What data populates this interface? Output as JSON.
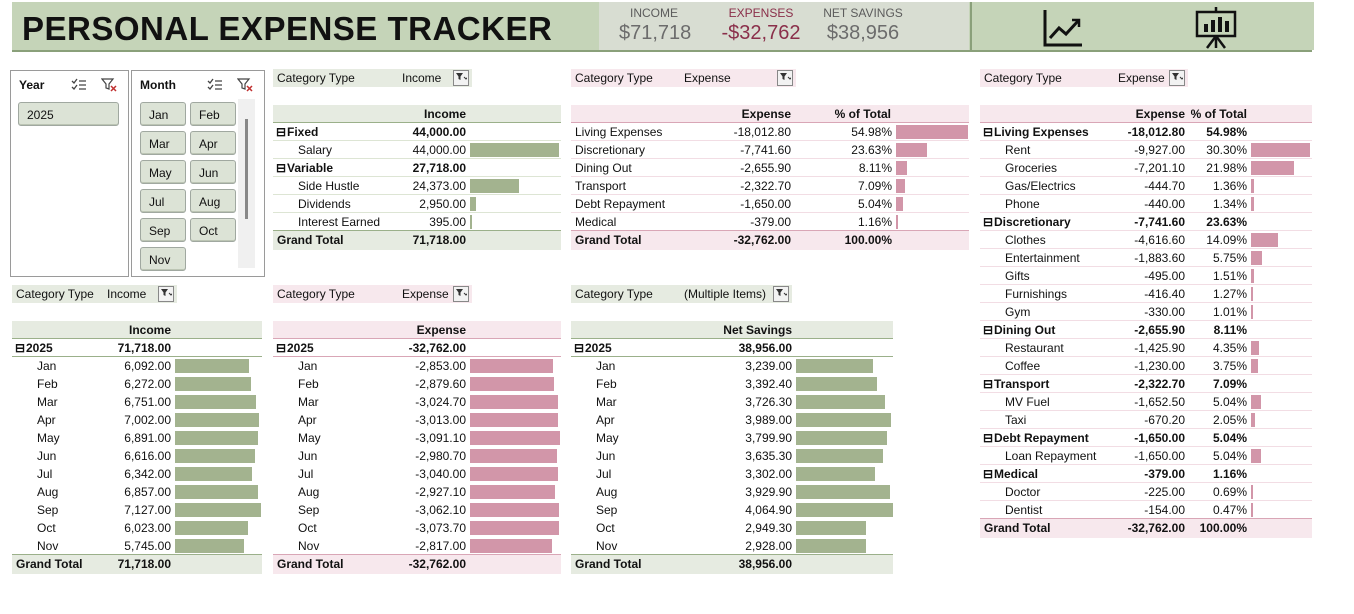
{
  "header": {
    "title": "PERSONAL EXPENSE TRACKER",
    "kpis": [
      {
        "label": "INCOME",
        "value": "$71,718"
      },
      {
        "label": "EXPENSES",
        "value": "-$32,762"
      },
      {
        "label": "NET SAVINGS",
        "value": "$38,956"
      }
    ],
    "icons": [
      "line-chart-icon",
      "presentation-board-icon"
    ]
  },
  "year_slicer": {
    "title": "Year",
    "items": [
      "2025"
    ]
  },
  "month_slicer": {
    "title": "Month",
    "items": [
      "Jan",
      "Feb",
      "Mar",
      "Apr",
      "May",
      "Jun",
      "Jul",
      "Aug",
      "Sep",
      "Oct",
      "Nov"
    ]
  },
  "pivot_income_type": {
    "filter_label": "Category Type",
    "filter_value": "Income",
    "col_header": "Income",
    "rows": [
      {
        "label": "Fixed",
        "value": "44,000.00",
        "group": true
      },
      {
        "label": "Salary",
        "value": "44,000.00",
        "group": false,
        "bar": 1.0
      },
      {
        "label": "Variable",
        "value": "27,718.00",
        "group": true
      },
      {
        "label": "Side Hustle",
        "value": "24,373.00",
        "group": false,
        "bar": 0.554
      },
      {
        "label": "Dividends",
        "value": "2,950.00",
        "group": false,
        "bar": 0.067
      },
      {
        "label": "Interest Earned",
        "value": "395.00",
        "group": false,
        "bar": 0.009
      }
    ],
    "total_label": "Grand Total",
    "total_value": "71,718.00"
  },
  "pivot_expense_cat": {
    "filter_label": "Category Type",
    "filter_value": "Expense",
    "col_header": "Expense",
    "col_header2": "% of Total",
    "rows": [
      {
        "label": "Living Expenses",
        "value": "-18,012.80",
        "pct": "54.98%",
        "bar": 1.0
      },
      {
        "label": "Discretionary",
        "value": "-7,741.60",
        "pct": "23.63%",
        "bar": 0.43
      },
      {
        "label": "Dining Out",
        "value": "-2,655.90",
        "pct": "8.11%",
        "bar": 0.147
      },
      {
        "label": "Transport",
        "value": "-2,322.70",
        "pct": "7.09%",
        "bar": 0.129
      },
      {
        "label": "Debt Repayment",
        "value": "-1,650.00",
        "pct": "5.04%",
        "bar": 0.092
      },
      {
        "label": "Medical",
        "value": "-379.00",
        "pct": "1.16%",
        "bar": 0.021
      }
    ],
    "total_label": "Grand Total",
    "total_value": "-32,762.00",
    "total_pct": "100.00%"
  },
  "pivot_expense_detail": {
    "filter_label": "Category Type",
    "filter_value": "Expense",
    "col_header": "Expense",
    "col_header2": "% of Total",
    "rows": [
      {
        "label": "Living Expenses",
        "value": "-18,012.80",
        "pct": "54.98%",
        "group": true
      },
      {
        "label": "Rent",
        "value": "-9,927.00",
        "pct": "30.30%",
        "bar": 1.0
      },
      {
        "label": "Groceries",
        "value": "-7,201.10",
        "pct": "21.98%",
        "bar": 0.725
      },
      {
        "label": "Gas/Electrics",
        "value": "-444.70",
        "pct": "1.36%",
        "bar": 0.045
      },
      {
        "label": "Phone",
        "value": "-440.00",
        "pct": "1.34%",
        "bar": 0.044
      },
      {
        "label": "Discretionary",
        "value": "-7,741.60",
        "pct": "23.63%",
        "group": true
      },
      {
        "label": "Clothes",
        "value": "-4,616.60",
        "pct": "14.09%",
        "bar": 0.465
      },
      {
        "label": "Entertainment",
        "value": "-1,883.60",
        "pct": "5.75%",
        "bar": 0.19
      },
      {
        "label": "Gifts",
        "value": "-495.00",
        "pct": "1.51%",
        "bar": 0.05
      },
      {
        "label": "Furnishings",
        "value": "-416.40",
        "pct": "1.27%",
        "bar": 0.042
      },
      {
        "label": "Gym",
        "value": "-330.00",
        "pct": "1.01%",
        "bar": 0.033
      },
      {
        "label": "Dining Out",
        "value": "-2,655.90",
        "pct": "8.11%",
        "group": true
      },
      {
        "label": "Restaurant",
        "value": "-1,425.90",
        "pct": "4.35%",
        "bar": 0.144
      },
      {
        "label": "Coffee",
        "value": "-1,230.00",
        "pct": "3.75%",
        "bar": 0.124
      },
      {
        "label": "Transport",
        "value": "-2,322.70",
        "pct": "7.09%",
        "group": true
      },
      {
        "label": "MV Fuel",
        "value": "-1,652.50",
        "pct": "5.04%",
        "bar": 0.166
      },
      {
        "label": "Taxi",
        "value": "-670.20",
        "pct": "2.05%",
        "bar": 0.068
      },
      {
        "label": "Debt Repayment",
        "value": "-1,650.00",
        "pct": "5.04%",
        "group": true
      },
      {
        "label": "Loan Repayment",
        "value": "-1,650.00",
        "pct": "5.04%",
        "bar": 0.166
      },
      {
        "label": "Medical",
        "value": "-379.00",
        "pct": "1.16%",
        "group": true
      },
      {
        "label": "Doctor",
        "value": "-225.00",
        "pct": "0.69%",
        "bar": 0.023
      },
      {
        "label": "Dentist",
        "value": "-154.00",
        "pct": "0.47%",
        "bar": 0.016
      }
    ],
    "total_label": "Grand Total",
    "total_value": "-32,762.00",
    "total_pct": "100.00%"
  },
  "pivot_income_month": {
    "filter_label": "Category Type",
    "filter_value": "Income",
    "col_header": "Income",
    "year": "2025",
    "year_value": "71,718.00",
    "rows": [
      {
        "label": "Jan",
        "value": "6,092.00",
        "bar": 0.855
      },
      {
        "label": "Feb",
        "value": "6,272.00",
        "bar": 0.88
      },
      {
        "label": "Mar",
        "value": "6,751.00",
        "bar": 0.947
      },
      {
        "label": "Apr",
        "value": "7,002.00",
        "bar": 0.982
      },
      {
        "label": "May",
        "value": "6,891.00",
        "bar": 0.967
      },
      {
        "label": "Jun",
        "value": "6,616.00",
        "bar": 0.928
      },
      {
        "label": "Jul",
        "value": "6,342.00",
        "bar": 0.89
      },
      {
        "label": "Aug",
        "value": "6,857.00",
        "bar": 0.962
      },
      {
        "label": "Sep",
        "value": "7,127.00",
        "bar": 1.0
      },
      {
        "label": "Oct",
        "value": "6,023.00",
        "bar": 0.845
      },
      {
        "label": "Nov",
        "value": "5,745.00",
        "bar": 0.806
      }
    ],
    "total_label": "Grand Total",
    "total_value": "71,718.00"
  },
  "pivot_expense_month": {
    "filter_label": "Category Type",
    "filter_value": "Expense",
    "col_header": "Expense",
    "year": "2025",
    "year_value": "-32,762.00",
    "rows": [
      {
        "label": "Jan",
        "value": "-2,853.00",
        "bar": 0.923
      },
      {
        "label": "Feb",
        "value": "-2,879.60",
        "bar": 0.932
      },
      {
        "label": "Mar",
        "value": "-3,024.70",
        "bar": 0.978
      },
      {
        "label": "Apr",
        "value": "-3,013.00",
        "bar": 0.975
      },
      {
        "label": "May",
        "value": "-3,091.10",
        "bar": 1.0
      },
      {
        "label": "Jun",
        "value": "-2,980.70",
        "bar": 0.964
      },
      {
        "label": "Jul",
        "value": "-3,040.00",
        "bar": 0.983
      },
      {
        "label": "Aug",
        "value": "-2,927.10",
        "bar": 0.947
      },
      {
        "label": "Sep",
        "value": "-3,062.10",
        "bar": 0.991
      },
      {
        "label": "Oct",
        "value": "-3,073.70",
        "bar": 0.994
      },
      {
        "label": "Nov",
        "value": "-2,817.00",
        "bar": 0.911
      }
    ],
    "total_label": "Grand Total",
    "total_value": "-32,762.00"
  },
  "pivot_savings_month": {
    "filter_label": "Category Type",
    "filter_value": "(Multiple Items)",
    "col_header": "Net Savings",
    "year": "2025",
    "year_value": "38,956.00",
    "rows": [
      {
        "label": "Jan",
        "value": "3,239.00",
        "bar": 0.797
      },
      {
        "label": "Feb",
        "value": "3,392.40",
        "bar": 0.835
      },
      {
        "label": "Mar",
        "value": "3,726.30",
        "bar": 0.917
      },
      {
        "label": "Apr",
        "value": "3,989.00",
        "bar": 0.981
      },
      {
        "label": "May",
        "value": "3,799.90",
        "bar": 0.935
      },
      {
        "label": "Jun",
        "value": "3,635.30",
        "bar": 0.894
      },
      {
        "label": "Jul",
        "value": "3,302.00",
        "bar": 0.812
      },
      {
        "label": "Aug",
        "value": "3,929.90",
        "bar": 0.967
      },
      {
        "label": "Sep",
        "value": "4,064.90",
        "bar": 1.0
      },
      {
        "label": "Oct",
        "value": "2,949.30",
        "bar": 0.726
      },
      {
        "label": "Nov",
        "value": "2,928.00",
        "bar": 0.72
      }
    ],
    "total_label": "Grand Total",
    "total_value": "38,956.00"
  },
  "colors": {
    "green_bar": "#a3b38f",
    "pink_bar": "#d296a9",
    "header_green": "#c5d4b8",
    "expense_text": "#8a2f4a"
  }
}
